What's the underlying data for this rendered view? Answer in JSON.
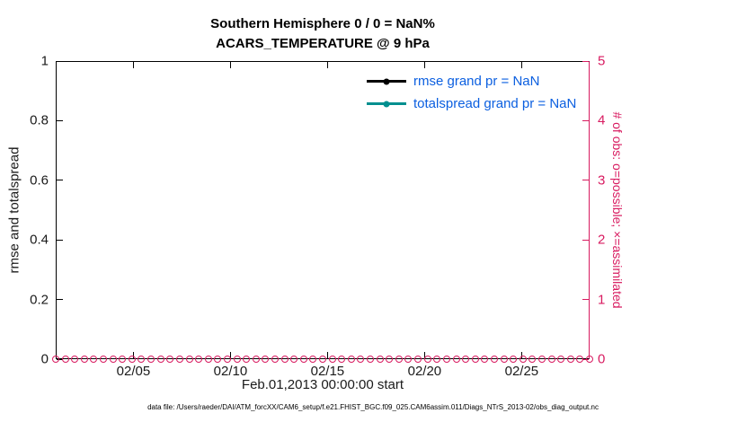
{
  "chart_data": {
    "type": "line",
    "title": "Southern Hemisphere 0 / 0 = NaN%",
    "subtitle": "ACARS_TEMPERATURE @ 9 hPa",
    "xlabel": "Feb.01,2013 00:00:00 start",
    "ylabel_left": "rmse and totalspread",
    "ylabel_right": "# of obs: o=possible; ×=assimilated",
    "ylim_left": [
      0,
      1
    ],
    "ylim_right": [
      0,
      5
    ],
    "grid": "off",
    "legend_position": "top-right-inside",
    "yticks_left": [
      "0",
      "0.2",
      "0.4",
      "0.6",
      "0.8",
      "1"
    ],
    "yticks_right": [
      "0",
      "1",
      "2",
      "3",
      "4",
      "5"
    ],
    "x_ticks": [
      {
        "label": "02/05",
        "pos": 0.1455
      },
      {
        "label": "02/10",
        "pos": 0.3273
      },
      {
        "label": "02/15",
        "pos": 0.5091
      },
      {
        "label": "02/20",
        "pos": 0.6909
      },
      {
        "label": "02/25",
        "pos": 0.8727
      }
    ],
    "series": [
      {
        "name": "rmse grand pr = NaN",
        "color": "#000000",
        "values": []
      },
      {
        "name": "totalspread grand pr = NaN",
        "color": "#008f8f",
        "values": []
      }
    ],
    "obs_markers": {
      "description": "# of obs possible/assimilated, all at 0 along bottom axis",
      "marker": "o",
      "count": 57,
      "value": 0,
      "color": "#d81b60"
    },
    "legend": [
      {
        "label": "rmse grand pr = NaN",
        "line_color": "#000000"
      },
      {
        "label": "totalspread grand pr = NaN",
        "line_color": "#008f8f"
      }
    ],
    "footer": "data file: /Users/raeder/DAI/ATM_forcXX/CAM6_setup/f.e21.FHIST_BGC.f09_025.CAM6assim.011/Diags_NTrS_2013-02/obs_diag_output.nc",
    "colors": {
      "right_axis": "#d81b60",
      "legend_text": "#0b5fe0",
      "rmse_line": "#000000",
      "totalspread_line": "#008f8f",
      "tick_text": "#1a1a1a"
    }
  }
}
